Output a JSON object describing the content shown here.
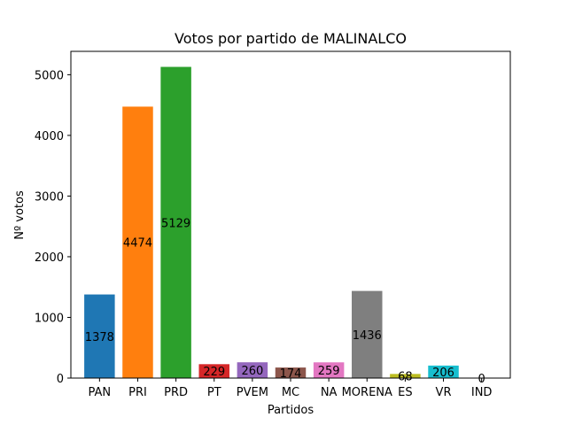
{
  "chart_data": {
    "type": "bar",
    "title": "Votos por partido de MALINALCO",
    "xlabel": "Partidos",
    "ylabel": "Nº votos",
    "categories": [
      "PAN",
      "PRI",
      "PRD",
      "PT",
      "PVEM",
      "MC",
      "NA",
      "MORENA",
      "ES",
      "VR",
      "IND"
    ],
    "values": [
      1378,
      4474,
      5129,
      229,
      260,
      174,
      259,
      1436,
      68,
      206,
      0
    ],
    "data_labels": [
      "1378",
      "4474",
      "5129",
      "229",
      "260",
      "174",
      "259",
      "1436",
      "68",
      "206",
      "0"
    ],
    "colors": [
      "#1f77b4",
      "#ff7f0e",
      "#2ca02c",
      "#d62728",
      "#9467bd",
      "#8c564b",
      "#e377c2",
      "#7f7f7f",
      "#bcbd22",
      "#17becf",
      "#1f77b4"
    ],
    "ylim": [
      0,
      5385
    ],
    "yticks": [
      0,
      1000,
      2000,
      3000,
      4000,
      5000
    ],
    "ytick_labels": [
      "0",
      "1000",
      "2000",
      "3000",
      "4000",
      "5000"
    ],
    "grid": false,
    "legend": "none"
  }
}
